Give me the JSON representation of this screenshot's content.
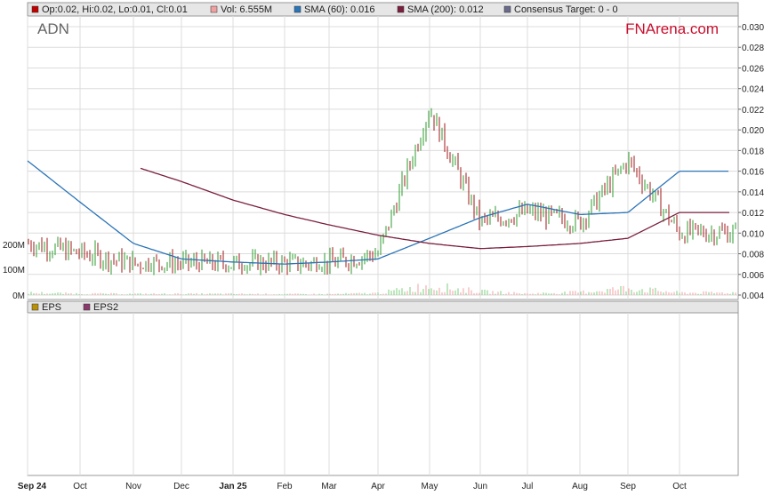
{
  "ticker": "ADN",
  "brand": "FNArena.com",
  "legend_top": [
    {
      "label": "Op:0.02, Hi:0.02, Lo:0.01, Cl:0.01",
      "color": "#c00000"
    },
    {
      "label": "Vol: 6.555M",
      "color": "#f0a0a0"
    },
    {
      "label": "SMA (60): 0.016",
      "color": "#2b74b8"
    },
    {
      "label": "SMA (200): 0.012",
      "color": "#7a1f3d"
    },
    {
      "label": "Consensus Target: 0 - 0",
      "color": "#6a6a8a"
    }
  ],
  "legend_bottom": [
    {
      "label": "EPS",
      "color": "#b8900a"
    },
    {
      "label": "EPS2",
      "color": "#8a3a6a"
    }
  ],
  "y_ticks": [
    "0.030",
    "0.028",
    "0.026",
    "0.024",
    "0.022",
    "0.020",
    "0.018",
    "0.016",
    "0.014",
    "0.012",
    "0.010",
    "0.008",
    "0.006",
    "0.004"
  ],
  "vol_ticks": [
    "200M",
    "100M",
    "0M"
  ],
  "x_labels": [
    "Sep 24",
    "Oct",
    "Nov",
    "Dec",
    "Jan 25",
    "Feb",
    "Mar",
    "Apr",
    "May",
    "Jun",
    "Jul",
    "Aug",
    "Sep",
    "Oct"
  ],
  "chart_data": {
    "type": "line",
    "title": "ADN",
    "price_range": [
      0.004,
      0.03
    ],
    "volume_range_millions": [
      0,
      200
    ],
    "x": [
      "Sep 24",
      "Oct",
      "Nov",
      "Dec",
      "Jan 25",
      "Feb",
      "Mar",
      "Apr",
      "May",
      "Jun",
      "Jul",
      "Aug",
      "Sep",
      "Oct"
    ],
    "series": [
      {
        "name": "Cl",
        "values": [
          0.009,
          0.008,
          0.007,
          0.007,
          0.007,
          0.007,
          0.007,
          0.008,
          0.022,
          0.011,
          0.012,
          0.011,
          0.017,
          0.01
        ]
      },
      {
        "name": "SMA (60)",
        "values": [
          0.017,
          0.013,
          0.009,
          0.0075,
          0.0072,
          0.007,
          0.0072,
          0.0075,
          0.0095,
          0.0115,
          0.0128,
          0.0118,
          0.012,
          0.016
        ]
      },
      {
        "name": "SMA (200)",
        "values": [
          null,
          null,
          0.0165,
          0.015,
          0.0132,
          0.0118,
          0.0108,
          0.0098,
          0.009,
          0.0085,
          0.0087,
          0.009,
          0.0095,
          0.012
        ]
      },
      {
        "name": "Vol",
        "values_millions": [
          10,
          6,
          5,
          5,
          5,
          4,
          4,
          8,
          40,
          15,
          6,
          12,
          30,
          10
        ]
      }
    ],
    "grid": true
  }
}
